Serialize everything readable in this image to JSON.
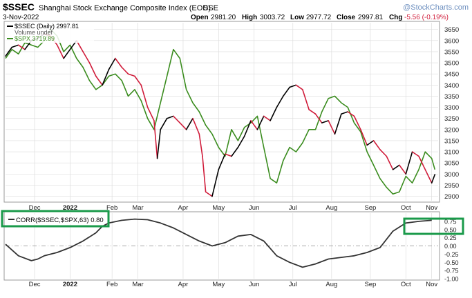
{
  "header": {
    "symbol": "$SSEC",
    "name": "Shanghai Stock Exchange Composite Index (EOD)",
    "exchange": "SSE",
    "date": "3-Nov-2022",
    "watermark": "@StockCharts.com",
    "open_label": "Open",
    "open": "2981.20",
    "high_label": "High",
    "high": "3003.72",
    "low_label": "Low",
    "low": "2977.72",
    "close_label": "Close",
    "close": "2997.81",
    "chg_label": "Chg",
    "chg": "-5.56 (-0.19%)"
  },
  "legend": {
    "ssec": "$SSEC (Daily) 2997.81",
    "volume": "Volume undef",
    "spx": "$SPX 3719.89",
    "corr": "CORR($SSEC,$SPX,63) 0.80"
  },
  "colors": {
    "up": "#000000",
    "down": "#d01c3a",
    "spx": "#3a8c1e",
    "corr": "#333333",
    "highlight_box": "#1a9a4a",
    "grid": "#dddddd",
    "axis_text": "#222222"
  },
  "chart_data": [
    {
      "type": "line",
      "title": "$SSEC Shanghai Stock Exchange Composite Index (EOD)",
      "xlabel": "",
      "ylabel": "",
      "ylim": [
        2880,
        3680
      ],
      "y_ticks": [
        2900,
        2950,
        3000,
        3050,
        3100,
        3150,
        3200,
        3250,
        3300,
        3350,
        3400,
        3450,
        3500,
        3550,
        3600,
        3650
      ],
      "x_ticks": [
        {
          "label": "Dec",
          "t": 9
        },
        {
          "label": "2022",
          "t": 20
        },
        {
          "label": "Feb",
          "t": 33
        },
        {
          "label": "Mar",
          "t": 41
        },
        {
          "label": "Apr",
          "t": 55
        },
        {
          "label": "May",
          "t": 66
        },
        {
          "label": "Jun",
          "t": 77
        },
        {
          "label": "Jul",
          "t": 89
        },
        {
          "label": "Aug",
          "t": 101
        },
        {
          "label": "Sep",
          "t": 113
        },
        {
          "label": "Oct",
          "t": 124
        },
        {
          "label": "Nov",
          "t": 132
        }
      ],
      "xlim": [
        0,
        134
      ],
      "grid": true,
      "legend_position": "top-left",
      "series": [
        {
          "name": "$SSEC (Daily)",
          "x": [
            0,
            2,
            4,
            6,
            8,
            10,
            12,
            14,
            16,
            18,
            20,
            22,
            24,
            26,
            28,
            30,
            32,
            34,
            36,
            38,
            40,
            42,
            44,
            46,
            47,
            48,
            50,
            52,
            54,
            56,
            58,
            60,
            61,
            62,
            64,
            66,
            68,
            70,
            72,
            74,
            76,
            78,
            80,
            82,
            84,
            86,
            88,
            90,
            92,
            94,
            96,
            98,
            100,
            102,
            104,
            106,
            108,
            110,
            112,
            114,
            116,
            118,
            120,
            122,
            124,
            126,
            128,
            130,
            132,
            133
          ],
          "values": [
            3530,
            3570,
            3580,
            3560,
            3600,
            3610,
            3630,
            3620,
            3580,
            3520,
            3560,
            3600,
            3550,
            3500,
            3440,
            3400,
            3470,
            3520,
            3480,
            3450,
            3440,
            3400,
            3300,
            3240,
            3070,
            3200,
            3250,
            3260,
            3230,
            3200,
            3250,
            3180,
            3080,
            2920,
            2900,
            3020,
            3090,
            3080,
            3120,
            3170,
            3240,
            3200,
            3260,
            3240,
            3300,
            3350,
            3390,
            3400,
            3380,
            3290,
            3270,
            3230,
            3240,
            3180,
            3270,
            3280,
            3260,
            3200,
            3130,
            3150,
            3110,
            3080,
            3020,
            3040,
            3000,
            3100,
            3080,
            3020,
            2960,
            2998
          ]
        },
        {
          "name": "$SPX",
          "x": [
            0,
            2,
            4,
            6,
            8,
            10,
            12,
            14,
            16,
            18,
            20,
            22,
            24,
            26,
            28,
            30,
            32,
            34,
            36,
            38,
            40,
            42,
            44,
            46,
            48,
            50,
            52,
            54,
            56,
            58,
            60,
            62,
            64,
            66,
            68,
            70,
            72,
            74,
            76,
            78,
            80,
            82,
            84,
            86,
            88,
            90,
            92,
            94,
            96,
            98,
            100,
            102,
            104,
            106,
            108,
            110,
            112,
            114,
            116,
            118,
            120,
            122,
            124,
            126,
            128,
            130,
            132,
            133
          ],
          "values": [
            3520,
            3560,
            3540,
            3590,
            3580,
            3570,
            3600,
            3650,
            3620,
            3550,
            3580,
            3520,
            3480,
            3420,
            3380,
            3400,
            3440,
            3450,
            3420,
            3350,
            3380,
            3330,
            3250,
            3200,
            3320,
            3440,
            3560,
            3520,
            3380,
            3320,
            3280,
            3220,
            3180,
            3120,
            3080,
            3200,
            3150,
            3210,
            3230,
            3260,
            3120,
            2980,
            2960,
            3060,
            3120,
            3100,
            3140,
            3200,
            3200,
            3280,
            3340,
            3350,
            3320,
            3300,
            3230,
            3190,
            3100,
            3040,
            2980,
            2940,
            2910,
            2920,
            2990,
            2960,
            3020,
            3100,
            3070,
            3020
          ]
        }
      ]
    },
    {
      "type": "line",
      "title": "CORR($SSEC,$SPX,63)",
      "xlabel": "",
      "ylabel": "",
      "ylim": [
        -1.0,
        1.0
      ],
      "y_ticks": [
        -1.0,
        -0.75,
        -0.5,
        -0.25,
        0.0,
        0.25,
        0.5,
        0.75
      ],
      "reference_line": 0.0,
      "grid": true,
      "series": [
        {
          "name": "CORR($SSEC,$SPX,63)",
          "x": [
            0,
            4,
            8,
            10,
            12,
            16,
            20,
            24,
            28,
            30,
            32,
            36,
            40,
            44,
            48,
            52,
            56,
            60,
            64,
            68,
            72,
            76,
            80,
            84,
            88,
            92,
            96,
            100,
            104,
            108,
            112,
            116,
            120,
            124,
            128,
            132
          ],
          "values": [
            0.05,
            -0.3,
            -0.45,
            -0.4,
            -0.3,
            -0.2,
            -0.05,
            0.15,
            0.4,
            0.6,
            0.7,
            0.78,
            0.82,
            0.8,
            0.7,
            0.55,
            0.35,
            0.15,
            0.0,
            0.1,
            0.3,
            0.35,
            0.15,
            -0.3,
            -0.5,
            -0.65,
            -0.55,
            -0.4,
            -0.35,
            -0.3,
            -0.2,
            -0.05,
            0.45,
            0.7,
            0.75,
            0.78
          ]
        }
      ]
    }
  ]
}
